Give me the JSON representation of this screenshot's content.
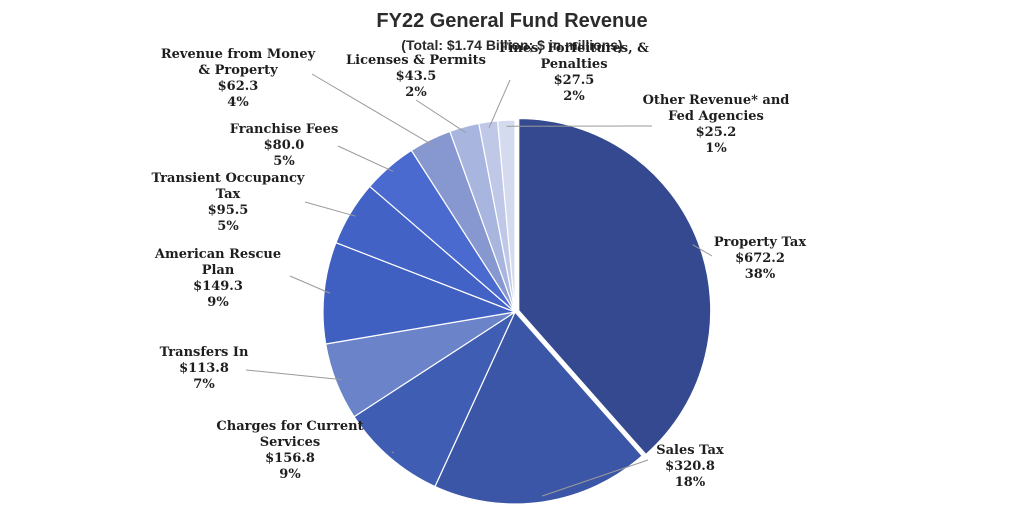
{
  "chart_data": {
    "type": "pie",
    "title": "FY22 General Fund Revenue",
    "subtitle": "(Total: $1.74 Billion; $ in millions)",
    "slices": [
      {
        "id": "property-tax",
        "label": [
          "Property Tax"
        ],
        "value_text": "$672.2",
        "percent_text": "38%",
        "value": 672.2,
        "color": "#34498f"
      },
      {
        "id": "sales-tax",
        "label": [
          "Sales Tax"
        ],
        "value_text": "$320.8",
        "percent_text": "18%",
        "value": 320.8,
        "color": "#3b56a6"
      },
      {
        "id": "charges-for-current-services",
        "label": [
          "Charges for Current",
          "Services"
        ],
        "value_text": "$156.8",
        "percent_text": "9%",
        "value": 156.8,
        "color": "#3f5db2"
      },
      {
        "id": "transfers-in",
        "label": [
          "Transfers In"
        ],
        "value_text": "$113.8",
        "percent_text": "7%",
        "value": 113.8,
        "color": "#6a83c9"
      },
      {
        "id": "american-rescue-plan",
        "label": [
          "American Rescue",
          "Plan"
        ],
        "value_text": "$149.3",
        "percent_text": "9%",
        "value": 149.3,
        "color": "#3f5fc1"
      },
      {
        "id": "transient-occupancy-tax",
        "label": [
          "Transient Occupancy",
          "Tax"
        ],
        "value_text": "$95.5",
        "percent_text": "5%",
        "value": 95.5,
        "color": "#4262c6"
      },
      {
        "id": "franchise-fees",
        "label": [
          "Franchise Fees"
        ],
        "value_text": "$80.0",
        "percent_text": "5%",
        "value": 80.0,
        "color": "#4a6ad0"
      },
      {
        "id": "revenue-from-money-property",
        "label": [
          "Revenue from Money",
          "& Property"
        ],
        "value_text": "$62.3",
        "percent_text": "4%",
        "value": 62.3,
        "color": "#8797cf"
      },
      {
        "id": "licenses-permits",
        "label": [
          "Licenses & Permits"
        ],
        "value_text": "$43.5",
        "percent_text": "2%",
        "value": 43.5,
        "color": "#a8b5df"
      },
      {
        "id": "fines-forfeitures-penalties",
        "label": [
          "Fines, Forfeitures, &",
          "Penalties"
        ],
        "value_text": "$27.5",
        "percent_text": "2%",
        "value": 27.5,
        "color": "#bfc8e7"
      },
      {
        "id": "other-revenue-fed-agencies",
        "label": [
          "Other Revenue* and",
          "Fed Agencies"
        ],
        "value_text": "$25.2",
        "percent_text": "1%",
        "value": 25.2,
        "color": "#d5dbef"
      }
    ]
  }
}
